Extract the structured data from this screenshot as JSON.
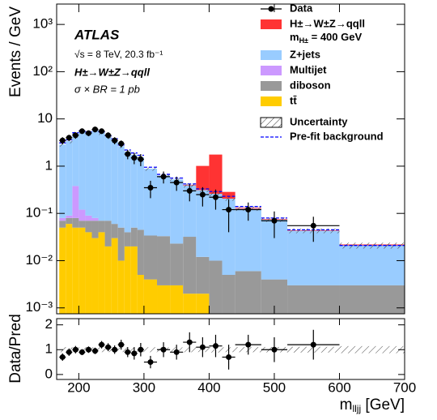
{
  "chart_data": {
    "type": "stacked-histogram",
    "log_y": true,
    "bins": [
      170,
      180,
      190,
      200,
      210,
      220,
      230,
      240,
      250,
      260,
      270,
      280,
      290,
      300,
      320,
      340,
      360,
      380,
      400,
      420,
      440,
      480,
      520,
      600,
      700
    ],
    "xlim": [
      166,
      700
    ],
    "xticks": [
      200,
      300,
      400,
      500,
      600,
      700
    ],
    "ylim": [
      0.00075,
      2700
    ],
    "yticks": [
      {
        "value": 0.001,
        "label": "10⁻³"
      },
      {
        "value": 0.01,
        "label": "10⁻²"
      },
      {
        "value": 0.1,
        "label": "10⁻¹"
      },
      1,
      10,
      {
        "value": 100,
        "label": "10²"
      },
      {
        "value": 1000,
        "label": "10³"
      }
    ],
    "y_label": "Events / GeV",
    "x_label": {
      "text": "m",
      "sub": "lljj",
      "unit": " [GeV]"
    },
    "annotations": [
      "ATLAS",
      "√s = 8 TeV, 20.3 fb⁻¹",
      "H±→W±Z→qqll",
      "σ × BR = 1 pb"
    ],
    "series": [
      {
        "name": "tt̄",
        "color": "#ffcc00",
        "values": [
          0.05,
          0.06,
          0.05,
          0.05,
          0.04,
          0.03,
          0.04,
          0.02,
          0.03,
          0.01,
          0.02,
          0.02,
          0.005,
          0.004,
          0.003,
          0.003,
          0.002,
          0.002,
          0,
          0,
          0,
          0,
          0,
          0
        ]
      },
      {
        "name": "diboson",
        "color": "#999999",
        "values": [
          0.02,
          0.02,
          0.03,
          0.02,
          0.03,
          0.04,
          0.03,
          0.05,
          0.03,
          0.04,
          0.02,
          0.03,
          0.04,
          0.03,
          0.03,
          0.02,
          0.03,
          0.01,
          0.01,
          0.005,
          0.006,
          0.004,
          0.003,
          0.003
        ]
      },
      {
        "name": "Multijet",
        "color": "#cc99ff",
        "values": [
          0.01,
          0.01,
          0.3,
          0.05,
          0.02,
          0.01,
          0,
          0,
          0,
          0,
          0,
          0,
          0,
          0,
          0,
          0,
          0,
          0,
          0,
          0,
          0,
          0,
          0,
          0
        ]
      },
      {
        "name": "Z+jets",
        "color": "#99ccff",
        "values": [
          2.8,
          3.3,
          4.5,
          5.3,
          5.0,
          5.6,
          5.0,
          4.1,
          3.5,
          2.6,
          2.0,
          1.7,
          1.5,
          0.85,
          0.6,
          0.5,
          0.36,
          0.3,
          0.25,
          0.2,
          0.12,
          0.07,
          0.04,
          0.018
        ]
      },
      {
        "name": "H±→W±Z→qqll",
        "color": "#ff3333",
        "values": [
          0,
          0,
          0,
          0,
          0,
          0,
          0,
          0,
          0,
          0,
          0,
          0,
          0,
          0,
          0,
          0,
          0.01,
          0.7,
          1.5,
          0.08,
          0.005,
          0.002,
          0.001,
          0.001
        ]
      }
    ],
    "signal_mass": {
      "text": "m",
      "sub": "H±",
      "rest": " = 400 GeV"
    },
    "data": {
      "name": "Data",
      "color": "#000000",
      "values": [
        3.5,
        4,
        4.5,
        5.5,
        5,
        6,
        5.5,
        4.5,
        3.5,
        3,
        1.8,
        1.5,
        1.4,
        0.35,
        0.6,
        0.45,
        0.3,
        0.25,
        0.22,
        0.12,
        0.12,
        0.07,
        0.055,
        null
      ],
      "errors": [
        0.6,
        0.6,
        0.7,
        0.7,
        0.7,
        0.8,
        0.7,
        0.7,
        0.6,
        0.5,
        0.4,
        0.4,
        0.4,
        0.14,
        0.17,
        0.15,
        0.12,
        0.11,
        0.1,
        0.08,
        0.05,
        0.04,
        0.03,
        null
      ]
    },
    "uncertainty": {
      "name": "Uncertainty",
      "values": [
        0.3,
        0.35,
        0.45,
        0.5,
        0.5,
        0.55,
        0.5,
        0.4,
        0.35,
        0.25,
        0.2,
        0.17,
        0.15,
        0.09,
        0.06,
        0.05,
        0.04,
        0.03,
        0.03,
        0.02,
        0.013,
        0.008,
        0.005,
        0.003
      ]
    },
    "prefit": {
      "name": "Pre-fit background",
      "color": "#0000ff",
      "values": [
        3.1,
        3.6,
        5.1,
        5.6,
        5.3,
        5.9,
        5.3,
        4.4,
        3.8,
        2.8,
        2.2,
        1.9,
        1.7,
        0.95,
        0.67,
        0.56,
        0.42,
        0.33,
        0.29,
        0.23,
        0.14,
        0.08,
        0.045,
        0.021
      ]
    },
    "ratio": {
      "y_label": "Data/Pred",
      "ylim": [
        -0.2,
        2.25
      ],
      "yticks": [
        0,
        1,
        2
      ],
      "values": [
        0.7,
        0.9,
        1.0,
        0.9,
        1.0,
        0.95,
        1.2,
        1.1,
        1.0,
        1.2,
        0.9,
        0.85,
        1.0,
        0.5,
        1.0,
        0.9,
        1.3,
        1.1,
        1.15,
        0.7,
        1.2,
        1.0,
        1.2,
        null
      ],
      "errors": [
        0.15,
        0.15,
        0.15,
        0.12,
        0.13,
        0.13,
        0.15,
        0.16,
        0.17,
        0.2,
        0.2,
        0.25,
        0.27,
        0.25,
        0.3,
        0.3,
        0.4,
        0.4,
        0.45,
        0.5,
        0.4,
        0.5,
        0.6,
        null
      ]
    }
  }
}
